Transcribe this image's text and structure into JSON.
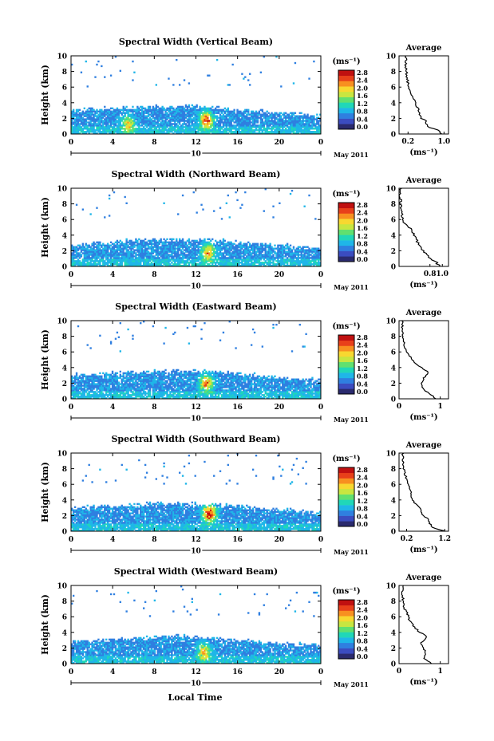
{
  "figure": {
    "xlabel": "Local Time",
    "date_label": "May 2011",
    "day_label": "10",
    "colorbar_unit": "(ms⁻¹)",
    "colorbar_ticks": [
      "0.0",
      "0.4",
      "0.8",
      "1.2",
      "1.6",
      "2.0",
      "2.4",
      "2.8"
    ],
    "x_ticks": [
      "0",
      "4",
      "8",
      "12",
      "16",
      "20",
      "0"
    ],
    "y_ticks": [
      "0",
      "2",
      "4",
      "6",
      "8",
      "10"
    ],
    "ylabel": "Height (km)",
    "avg_title": "Average",
    "avg_xlabel": "(ms⁻¹)",
    "colormap": [
      "#2a2a6e",
      "#3b4cc0",
      "#2f7fe0",
      "#1fb6e8",
      "#20d7b8",
      "#60e070",
      "#c8e640",
      "#f8d830",
      "#f89020",
      "#e8401a",
      "#c01010"
    ]
  },
  "chart_data": [
    {
      "type": "heatmap",
      "title": "Spectral Width (Vertical Beam)",
      "xlim": [
        0,
        24
      ],
      "ylim": [
        0,
        10
      ],
      "clim": [
        0.0,
        2.8
      ],
      "cloud_top_km": [
        3.0,
        3.1,
        3.3,
        3.4,
        3.5,
        3.6,
        3.5,
        3.3,
        3.1,
        2.9,
        2.7,
        2.5,
        2.3
      ],
      "hotspots": [
        {
          "t": 5.5,
          "h": 1.3,
          "w": 1.4
        },
        {
          "t": 13.0,
          "h": 1.8,
          "w": 2.2
        }
      ],
      "avg_xticks": [
        "0.2",
        "1.0"
      ],
      "avg_xlim": [
        0.0,
        1.1
      ],
      "avg_profile": [
        [
          0.95,
          0.0
        ],
        [
          0.9,
          0.4
        ],
        [
          0.7,
          0.8
        ],
        [
          0.6,
          1.2
        ],
        [
          0.62,
          1.6
        ],
        [
          0.5,
          2.0
        ],
        [
          0.45,
          2.6
        ],
        [
          0.42,
          3.2
        ],
        [
          0.35,
          4.0
        ],
        [
          0.3,
          4.8
        ],
        [
          0.25,
          5.6
        ],
        [
          0.2,
          6.4
        ],
        [
          0.18,
          7.2
        ],
        [
          0.16,
          8.0
        ],
        [
          0.15,
          9.0
        ],
        [
          0.15,
          10.0
        ]
      ]
    },
    {
      "type": "heatmap",
      "title": "Spectral Width (Northward Beam)",
      "xlim": [
        0,
        24
      ],
      "ylim": [
        0,
        10
      ],
      "clim": [
        0.0,
        2.8
      ],
      "cloud_top_km": [
        2.8,
        2.9,
        3.1,
        3.3,
        3.4,
        3.5,
        3.4,
        3.3,
        3.1,
        2.9,
        2.7,
        2.5,
        2.3
      ],
      "hotspots": [
        {
          "t": 13.2,
          "h": 1.8,
          "w": 1.8
        }
      ],
      "avg_xticks": [
        "0.8",
        "1.0"
      ],
      "avg_xlim": [
        0.3,
        1.1
      ],
      "avg_profile": [
        [
          0.95,
          0.0
        ],
        [
          0.9,
          0.5
        ],
        [
          0.8,
          1.0
        ],
        [
          0.75,
          1.4
        ],
        [
          0.7,
          2.0
        ],
        [
          0.65,
          2.6
        ],
        [
          0.6,
          3.2
        ],
        [
          0.55,
          4.0
        ],
        [
          0.5,
          4.8
        ],
        [
          0.42,
          5.4
        ],
        [
          0.35,
          6.0
        ],
        [
          0.33,
          7.0
        ],
        [
          0.32,
          8.0
        ],
        [
          0.32,
          9.0
        ],
        [
          0.32,
          10.0
        ]
      ]
    },
    {
      "type": "heatmap",
      "title": "Spectral Width (Eastward Beam)",
      "xlim": [
        0,
        24
      ],
      "ylim": [
        0,
        10
      ],
      "clim": [
        0.0,
        2.8
      ],
      "cloud_top_km": [
        3.0,
        3.1,
        3.3,
        3.4,
        3.5,
        3.6,
        3.6,
        3.4,
        3.2,
        3.0,
        2.8,
        2.6,
        2.4
      ],
      "hotspots": [
        {
          "t": 13.0,
          "h": 2.0,
          "w": 2.0
        }
      ],
      "avg_xticks": [
        "0",
        "1"
      ],
      "avg_xlim": [
        0.0,
        1.2
      ],
      "avg_profile": [
        [
          0.9,
          0.0
        ],
        [
          0.75,
          0.6
        ],
        [
          0.6,
          1.2
        ],
        [
          0.55,
          2.0
        ],
        [
          0.6,
          2.6
        ],
        [
          0.72,
          3.3
        ],
        [
          0.55,
          4.0
        ],
        [
          0.4,
          4.6
        ],
        [
          0.3,
          5.2
        ],
        [
          0.2,
          6.0
        ],
        [
          0.12,
          7.0
        ],
        [
          0.1,
          8.0
        ],
        [
          0.08,
          9.0
        ],
        [
          0.08,
          10.0
        ]
      ]
    },
    {
      "type": "heatmap",
      "title": "Spectral Width (Southward Beam)",
      "xlim": [
        0,
        24
      ],
      "ylim": [
        0,
        10
      ],
      "clim": [
        0.0,
        2.8
      ],
      "cloud_top_km": [
        3.0,
        3.1,
        3.2,
        3.4,
        3.5,
        3.6,
        3.5,
        3.4,
        3.2,
        3.0,
        2.8,
        2.6,
        2.4
      ],
      "hotspots": [
        {
          "t": 13.3,
          "h": 2.3,
          "w": 2.6
        }
      ],
      "avg_xticks": [
        "0.2",
        "1.2"
      ],
      "avg_xlim": [
        0.0,
        1.3
      ],
      "avg_profile": [
        [
          1.2,
          0.0
        ],
        [
          0.9,
          0.4
        ],
        [
          0.8,
          1.0
        ],
        [
          0.75,
          1.6
        ],
        [
          0.6,
          2.2
        ],
        [
          0.55,
          3.0
        ],
        [
          0.4,
          3.6
        ],
        [
          0.35,
          4.2
        ],
        [
          0.3,
          5.0
        ],
        [
          0.25,
          5.8
        ],
        [
          0.2,
          6.6
        ],
        [
          0.15,
          7.4
        ],
        [
          0.12,
          8.2
        ],
        [
          0.1,
          9.0
        ],
        [
          0.1,
          10.0
        ]
      ]
    },
    {
      "type": "heatmap",
      "title": "Spectral Width (Westward Beam)",
      "xlim": [
        0,
        24
      ],
      "ylim": [
        0,
        10
      ],
      "clim": [
        0.0,
        2.8
      ],
      "cloud_top_km": [
        2.8,
        2.9,
        3.1,
        3.2,
        3.4,
        3.5,
        3.4,
        3.2,
        3.0,
        2.8,
        2.6,
        2.5,
        2.3
      ],
      "hotspots": [
        {
          "t": 12.8,
          "h": 1.5,
          "w": 1.6
        }
      ],
      "avg_xticks": [
        "0",
        "1"
      ],
      "avg_xlim": [
        0.0,
        1.2
      ],
      "avg_profile": [
        [
          0.8,
          0.0
        ],
        [
          0.6,
          0.6
        ],
        [
          0.65,
          1.2
        ],
        [
          0.6,
          2.0
        ],
        [
          0.5,
          2.6
        ],
        [
          0.7,
          3.4
        ],
        [
          0.5,
          4.0
        ],
        [
          0.35,
          4.8
        ],
        [
          0.25,
          5.6
        ],
        [
          0.2,
          6.4
        ],
        [
          0.12,
          7.2
        ],
        [
          0.1,
          8.0
        ],
        [
          0.08,
          9.0
        ],
        [
          0.08,
          10.0
        ]
      ]
    }
  ]
}
